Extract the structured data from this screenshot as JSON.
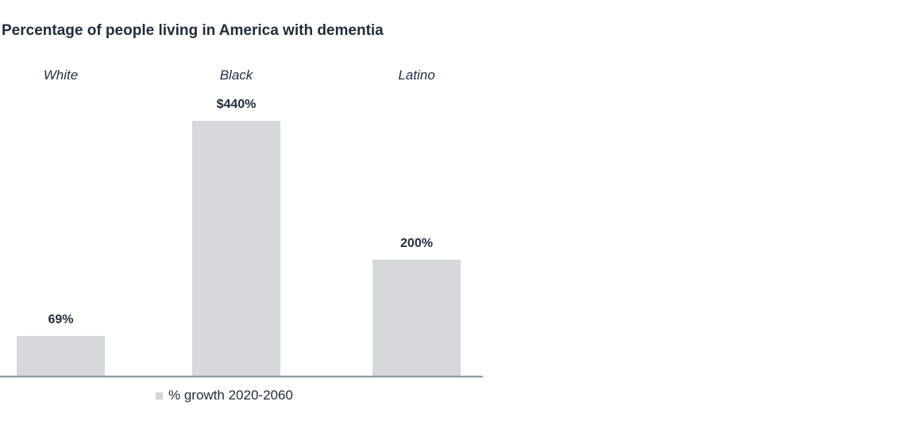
{
  "chart_data": {
    "type": "bar",
    "title": "Percentage of people living in America with dementia",
    "categories": [
      "White",
      "Black",
      "Latino"
    ],
    "values": [
      69,
      440,
      200
    ],
    "value_labels": [
      "69%",
      "$440%",
      "200%"
    ],
    "legend": [
      "% growth 2020-2060"
    ],
    "xlabel": "",
    "ylabel": "",
    "ylim": [
      0,
      460
    ],
    "grid": false,
    "legend_position": "bottom",
    "bar_color": "#d6d9da",
    "axis_color": "#959ca3",
    "text_color": "#1f2d3c"
  }
}
